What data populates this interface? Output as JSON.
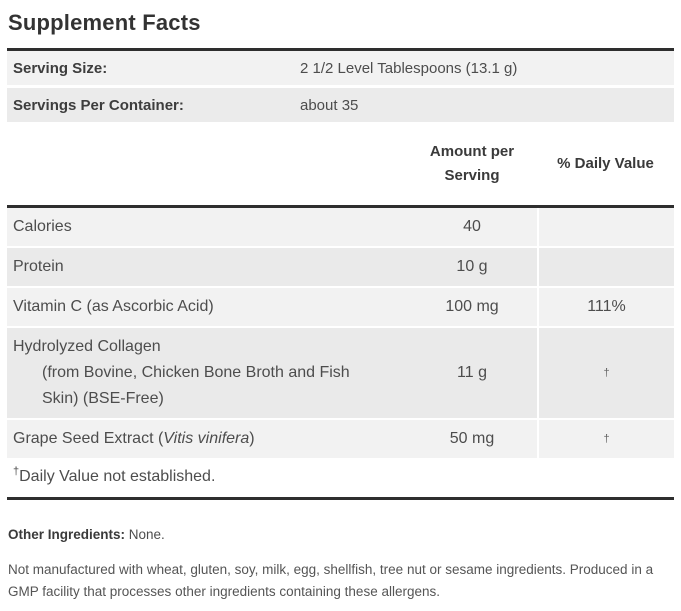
{
  "title": "Supplement Facts",
  "serving_info": {
    "rows": [
      {
        "label": "Serving Size:",
        "value": "2 1/2 Level Tablespoons (13.1 g)"
      },
      {
        "label": "Servings Per Container:",
        "value": "about 35"
      }
    ]
  },
  "table": {
    "headers": {
      "amount": "Amount per Serving",
      "daily_value": "% Daily Value"
    },
    "rows": [
      {
        "name": "Calories",
        "amount": "40",
        "dv": ""
      },
      {
        "name": "Protein",
        "amount": "10 g",
        "dv": ""
      },
      {
        "name": "Vitamin C (as Ascorbic Acid)",
        "amount": "100 mg",
        "dv": "111%"
      },
      {
        "name": "Hydrolyzed Collagen",
        "sub_lines": [
          "(from Bovine, Chicken Bone Broth and Fish",
          "Skin) (BSE-Free)"
        ],
        "amount": "11 g",
        "dv": "†"
      },
      {
        "name_prefix": "Grape Seed Extract (",
        "name_italic": "Vitis vinifera",
        "name_suffix": ")",
        "amount": "50 mg",
        "dv": "†"
      }
    ],
    "footnote_symbol": "†",
    "footnote_text": "Daily Value not established."
  },
  "other_ingredients": {
    "label": "Other Ingredients:",
    "value": "None."
  },
  "allergen_statement": "Not manufactured with wheat, gluten, soy, milk, egg, shellfish, tree nut or sesame ingredients. Produced in a GMP facility that processes other ingredients containing these allergens.",
  "colors": {
    "rule": "#2e2e2e",
    "row_light": "#f2f2f2",
    "row_dark": "#eaeaea",
    "text_primary": "#3a3a3a",
    "text_secondary": "#4d4d4d"
  }
}
